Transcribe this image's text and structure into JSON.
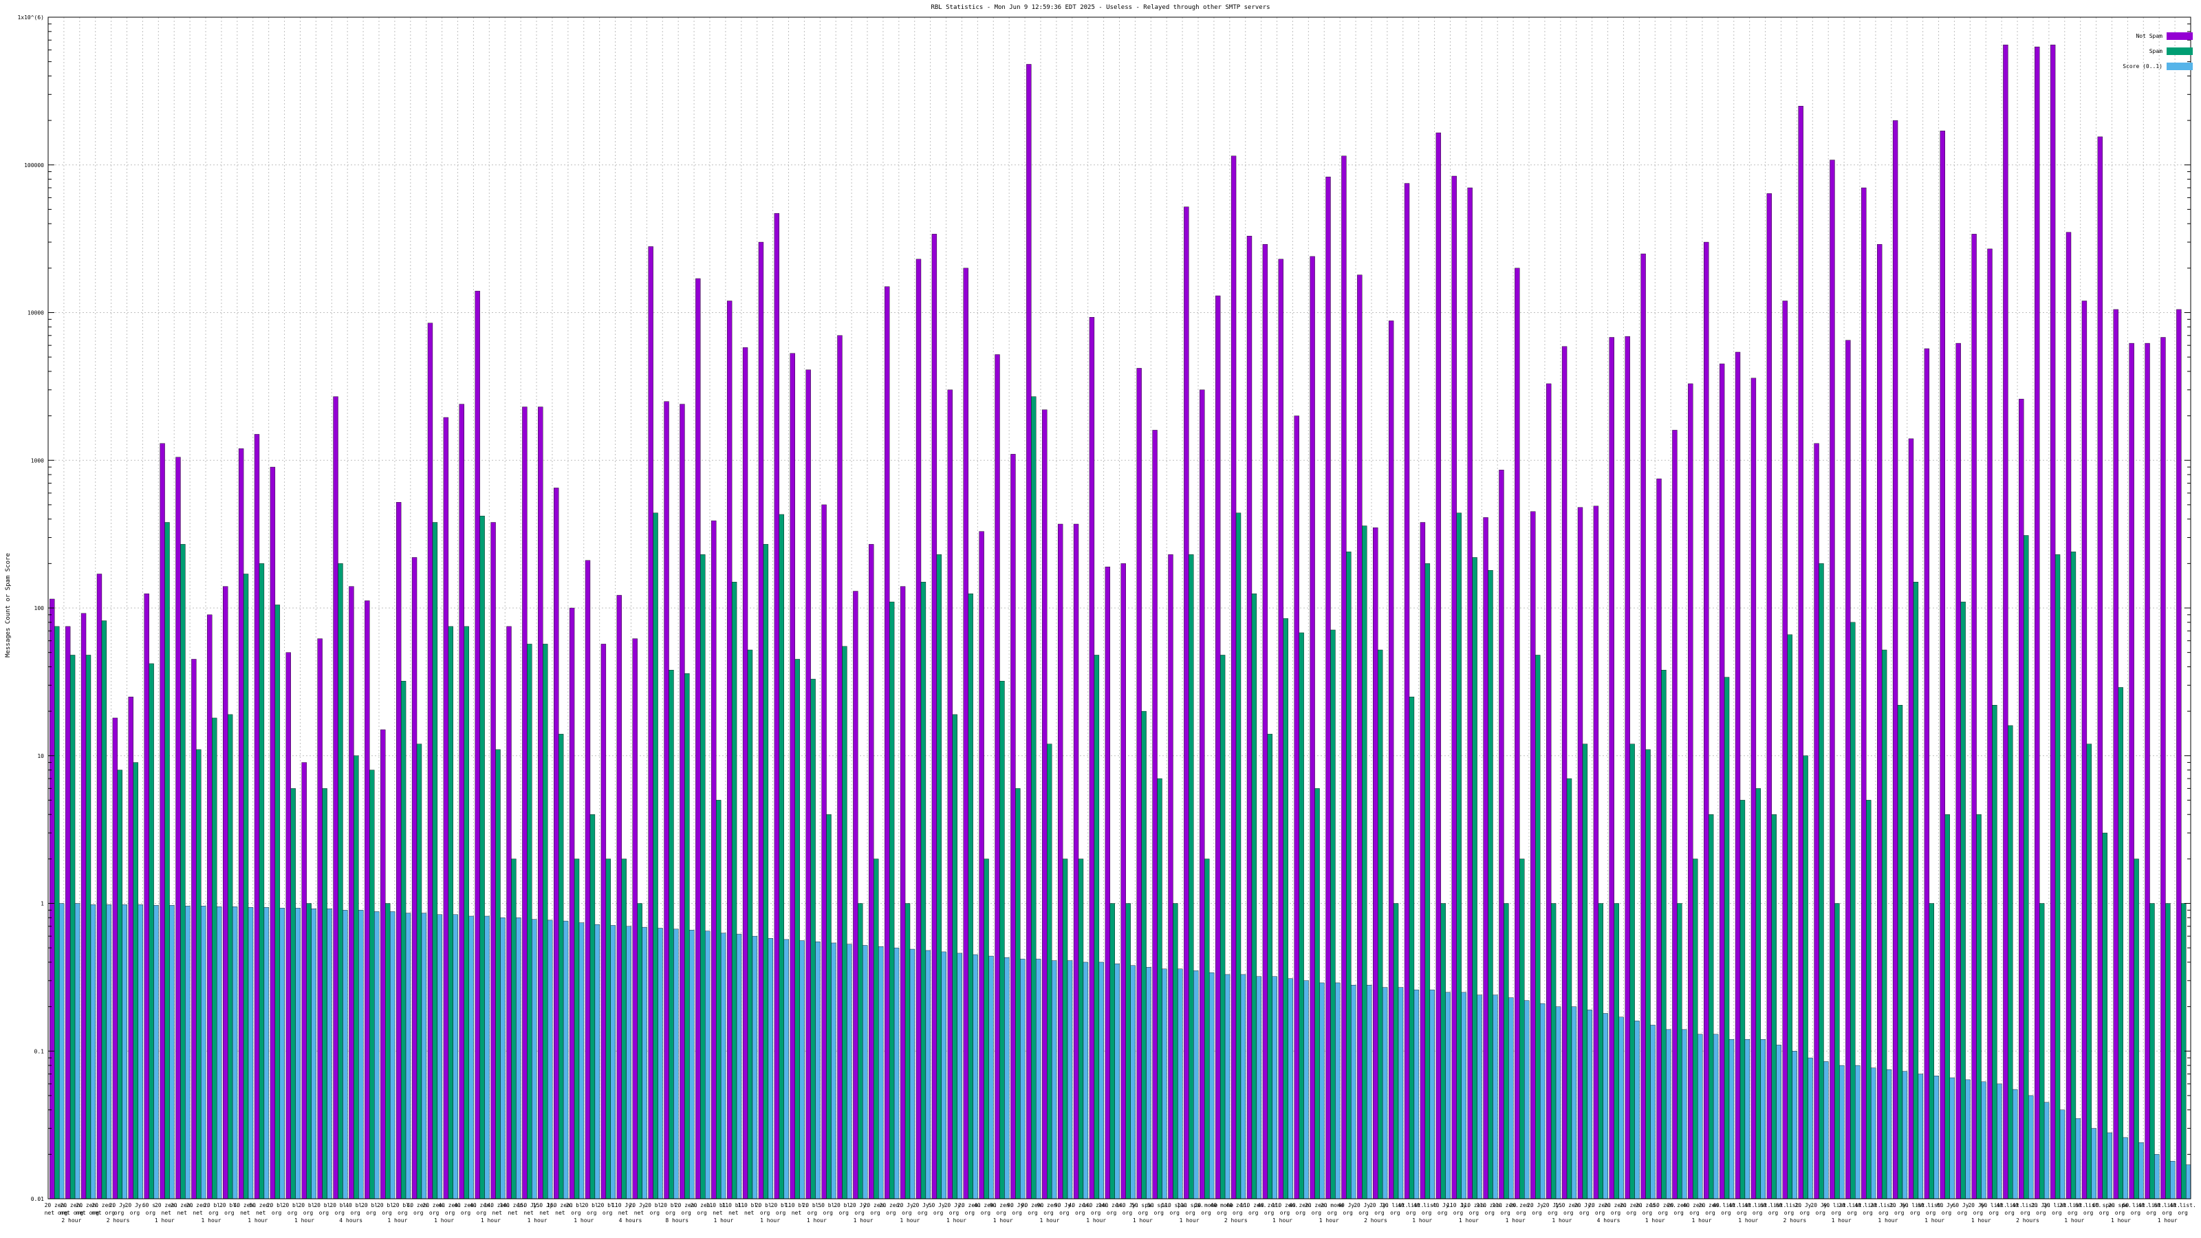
{
  "chart_data": {
    "type": "bar",
    "title": "RBL Statistics - Mon Jun  9 12:59:36 EDT 2025 - Useless - Relayed through other SMTP servers",
    "ylabel": "Messages Count or Spam Score",
    "yscale": "log",
    "ylim": [
      0.01,
      1000000
    ],
    "ytick_labels": [
      "0.01",
      "0.1",
      "1",
      "10",
      "100",
      "1000",
      "10000",
      "100000",
      "1x10^(6)"
    ],
    "grid": true,
    "legend_position": "top-right",
    "colors": {
      "not_spam": "#9400d3",
      "spam": "#009e73",
      "score": "#56b4e9"
    },
    "series": [
      {
        "name": "Not Spam",
        "values": [
          115,
          75,
          92,
          170,
          18,
          25,
          125,
          1300,
          1050,
          45,
          90,
          140,
          1200,
          1500,
          900,
          50,
          9,
          62,
          2700,
          140,
          112,
          15,
          520,
          220,
          8500,
          1950,
          2400,
          14000,
          380,
          75,
          2300,
          2300,
          650,
          100,
          210,
          57,
          122,
          62,
          28000,
          2500,
          2400,
          17000,
          390,
          12000,
          5800,
          30000,
          47000,
          5300,
          4100,
          500,
          7000,
          130,
          270,
          15000,
          140,
          23000,
          34000,
          3000,
          20000,
          330,
          5200,
          1100,
          480000,
          2200,
          370,
          370,
          9300,
          190,
          200,
          4200,
          1600,
          230,
          52000,
          3000,
          13000,
          115000,
          33000,
          29000,
          23000,
          2000,
          24000,
          83000,
          115000,
          18000,
          350,
          8800,
          75000,
          380,
          165000,
          84000,
          70000,
          410,
          860,
          20000,
          450,
          3300,
          5900,
          480,
          490,
          6800,
          6900,
          25000,
          750,
          1600,
          3300,
          30000,
          4500,
          5400,
          3600,
          64000,
          12000,
          250000,
          1300,
          108000,
          6500,
          70000,
          29000,
          200000,
          1400,
          5700,
          170000,
          6200,
          34000,
          27000,
          650000,
          2600,
          630000,
          650000,
          35000,
          12000,
          155000,
          10500,
          6200,
          6200,
          6800,
          10500
        ]
      },
      {
        "name": "Spam",
        "values": [
          75,
          48,
          48,
          82,
          8,
          9,
          42,
          380,
          270,
          11,
          18,
          19,
          170,
          200,
          105,
          6,
          1,
          6,
          200,
          10,
          8,
          1,
          32,
          12,
          380,
          75,
          75,
          420,
          11,
          2,
          57,
          57,
          14,
          2,
          4,
          2,
          2,
          1,
          440,
          38,
          36,
          230,
          5,
          150,
          52,
          270,
          430,
          45,
          33,
          4,
          55,
          1,
          2,
          110,
          1,
          150,
          230,
          19,
          125,
          2,
          32,
          6,
          2700,
          12,
          2,
          2,
          48,
          1,
          1,
          20,
          7,
          1,
          230,
          2,
          48,
          440,
          125,
          14,
          85,
          68,
          6,
          71,
          240,
          360,
          52,
          1,
          25,
          200,
          1,
          440,
          220,
          180,
          1,
          2,
          48,
          1,
          7,
          12,
          1,
          1,
          12,
          11,
          38,
          1,
          2,
          4,
          34,
          5,
          6,
          4,
          66,
          10,
          200,
          1,
          80,
          5,
          52,
          22,
          150,
          1,
          4,
          110,
          4,
          22,
          16,
          310,
          1,
          230,
          240,
          12,
          3,
          29,
          2,
          1,
          1,
          1,
          1
        ]
      },
      {
        "name": "Score (0..1)",
        "values": [
          1,
          1,
          0.98,
          0.98,
          0.98,
          0.98,
          0.97,
          0.97,
          0.96,
          0.96,
          0.95,
          0.95,
          0.94,
          0.94,
          0.93,
          0.93,
          0.92,
          0.92,
          0.9,
          0.9,
          0.88,
          0.88,
          0.86,
          0.86,
          0.84,
          0.84,
          0.82,
          0.82,
          0.8,
          0.8,
          0.78,
          0.77,
          0.76,
          0.74,
          0.72,
          0.71,
          0.7,
          0.69,
          0.68,
          0.67,
          0.66,
          0.65,
          0.63,
          0.62,
          0.6,
          0.58,
          0.57,
          0.56,
          0.55,
          0.54,
          0.53,
          0.52,
          0.51,
          0.5,
          0.49,
          0.48,
          0.47,
          0.46,
          0.45,
          0.44,
          0.43,
          0.42,
          0.42,
          0.41,
          0.41,
          0.4,
          0.4,
          0.39,
          0.38,
          0.37,
          0.36,
          0.36,
          0.35,
          0.34,
          0.33,
          0.33,
          0.32,
          0.32,
          0.31,
          0.3,
          0.29,
          0.29,
          0.28,
          0.28,
          0.27,
          0.27,
          0.26,
          0.26,
          0.25,
          0.25,
          0.24,
          0.24,
          0.23,
          0.22,
          0.21,
          0.2,
          0.2,
          0.19,
          0.18,
          0.17,
          0.16,
          0.15,
          0.14,
          0.14,
          0.13,
          0.13,
          0.12,
          0.12,
          0.12,
          0.11,
          0.1,
          0.09,
          0.085,
          0.08,
          0.08,
          0.077,
          0.075,
          0.073,
          0.07,
          0.068,
          0.066,
          0.064,
          0.062,
          0.06,
          0.055,
          0.05,
          0.045,
          0.04,
          0.035,
          0.03,
          0.028,
          0.026,
          0.024,
          0.02,
          0.018,
          0.017,
          0.016,
          0.015
        ]
      }
    ],
    "x_labels_row1": [
      "20 zen.",
      "20 zen.",
      "20 zen.",
      "20 zen.",
      "20 Jy.",
      "20 Jy.",
      "60 s.",
      "20 zen.",
      "20 zen.",
      "20 zen.",
      "20 bl.",
      "20 bl.",
      "40 zen.",
      "50 zen.",
      "20 bl.",
      "20 bl.",
      "20 bl.",
      "20 bl.",
      "20 bl.",
      "40 bl.",
      "20 bl.",
      "20 bl.",
      "20 bl.",
      "40 zen.",
      "20 zen.",
      "40 zen.",
      "40 zen.",
      "40 zen.",
      "140 zen.",
      "140 zen.",
      "150 Jy.",
      "150 Jy.",
      "150 zen.",
      "20 bl.",
      "20 bl.",
      "20 bl.",
      "110 Jy.",
      "20 Jy.",
      "20 bl.",
      "20 bl.",
      "20 zen.",
      "20 zen.",
      "110 bl.",
      "110 bl.",
      "110 bl.",
      "20 bl.",
      "20 bl.",
      "110 bl.",
      "20 bl.",
      "50 bl.",
      "20 bl.",
      "20 Jy.",
      "20 zen.",
      "20 zen.",
      "20 Jy.",
      "20 Jy.",
      "50 Jy.",
      "20 Jy.",
      "20 zen.",
      "40 zen.",
      "90 zen.",
      "90 Jy.",
      "90 zen.",
      "90 zen.",
      "90 Jy.",
      "40 zen.",
      "140 zen.",
      "140 zen.",
      "140 Jy.",
      "50 spa.",
      "50 spa.",
      "110 spa.",
      "110 spa.",
      "20 mone",
      "40 mone",
      "40 zen.",
      "110 zen.",
      "40 zen.",
      "110 zen.",
      "40 zen.",
      "20 zen.",
      "20 mone",
      "40 Jy.",
      "20 Jy.",
      "20 Jy.",
      "20 list.",
      "40 list.",
      "40 list.",
      "40 Jy.",
      "110 Jy.",
      "110 zen.",
      "110 zen.",
      "110 zen.",
      "20 zen.",
      "20 Jy.",
      "20 Jy.",
      "150 zen.",
      "20 Jy.",
      "20 zen.",
      "20 zen.",
      "20 zen.",
      "20 zen.",
      "150 zen.",
      "20 zen.",
      "40 zen.",
      "20 zen.",
      "40 list.",
      "40 list.",
      "40 list.",
      "60 list.",
      "60 list.",
      "20 Jy.",
      "20 Jy.",
      "40 list.",
      "20 list.",
      "40 list.",
      "20 list.",
      "20 Jy.",
      "60 list.",
      "60 list.",
      "60 Jy.",
      "60 Jy.",
      "20 Jy.",
      "60 list.",
      "40 list.",
      "40 list.",
      "20 Jy.",
      "20 list.",
      "20 list.",
      "60 list.",
      "60 spe.",
      "20 spe.",
      "60 list.",
      "40 list.",
      "60 list.",
      "40 list.",
      "20 Jy."
    ],
    "x_labels_row2": [
      "net org",
      "net org",
      "net org",
      "net org",
      "org",
      "org",
      "org",
      "net",
      "net",
      "net",
      "org",
      "org",
      "net",
      "net",
      "org",
      "org",
      "org",
      "org",
      "org",
      "org",
      "org",
      "org",
      "org",
      "org",
      "org",
      "org",
      "org",
      "org",
      "net",
      "net",
      "net",
      "net",
      "net",
      "org",
      "org",
      "org",
      "net",
      "net",
      "org",
      "org",
      "org",
      "org",
      "net",
      "net",
      "net",
      "org",
      "org",
      "net",
      "org",
      "org",
      "org",
      "org",
      "org",
      "org",
      "org",
      "org",
      "org",
      "org",
      "org",
      "org",
      "org",
      "org",
      "org",
      "org",
      "org",
      "org",
      "org",
      "org",
      "org",
      "org",
      "org",
      "org",
      "org",
      "org",
      "org",
      "org",
      "org",
      "org",
      "org",
      "org",
      "org",
      "org",
      "org",
      "org",
      "org",
      "org",
      "org",
      "org",
      "org",
      "org",
      "org",
      "org",
      "org",
      "org",
      "org",
      "org",
      "org",
      "org",
      "org",
      "org",
      "org",
      "org",
      "org",
      "org",
      "org",
      "org",
      "org",
      "org",
      "org",
      "org",
      "org",
      "org",
      "org",
      "org",
      "org",
      "org",
      "org",
      "org",
      "org",
      "org",
      "org",
      "org",
      "org",
      "org",
      "org",
      "org",
      "org",
      "org",
      "org",
      "org",
      "org",
      "org",
      "org",
      "org",
      "org",
      "org",
      "org",
      "org",
      "org"
    ],
    "x_group_labels": [
      "2 hour",
      "2 hours",
      "1 hour",
      "1 hour",
      "1 hour",
      "1 hour",
      "4 hours",
      "1 hour",
      "1 hour",
      "1 hour",
      "1 hour",
      "1 hour",
      "4 hours",
      "8 hours",
      "1 hour",
      "1 hour",
      "1 hour",
      "1 hour",
      "1 hour",
      "1 hour",
      "1 hour",
      "1 hour",
      "1 hour",
      "1 hour",
      "1 hour",
      "2 hours",
      "1 hour",
      "1 hour",
      "2 hours",
      "1 hour",
      "1 hour",
      "1 hour",
      "1 hour",
      "4 hours",
      "1 hour",
      "1 hour",
      "1 hour",
      "2 hours",
      "1 hour",
      "1 hour",
      "1 hour",
      "1 hour",
      "2 hours",
      "1 hour",
      "1 hour",
      "1 hour"
    ]
  },
  "legend": {
    "not_spam": "Not Spam",
    "spam": "Spam",
    "score": "Score (0..1)"
  }
}
